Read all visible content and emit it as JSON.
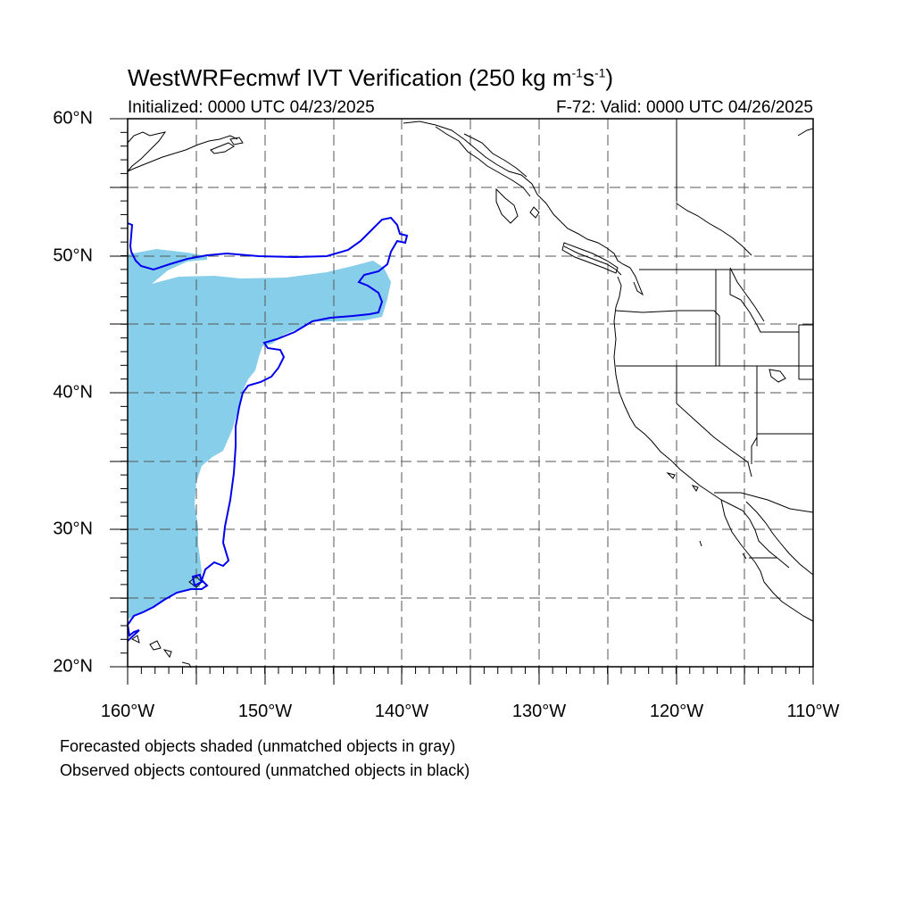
{
  "title": {
    "main": "WestWRFecmwf IVT Verification (250 kg m",
    "exp1": "-1",
    "mid": "s",
    "exp2": "-1",
    "end": ")"
  },
  "subtitle_left": "Initialized: 0000 UTC 04/23/2025",
  "subtitle_right": "F-72: Valid: 0000 UTC 04/26/2025",
  "lat_labels": [
    "60°N",
    "50°N",
    "40°N",
    "30°N",
    "20°N"
  ],
  "lon_labels": [
    "160°W",
    "150°W",
    "140°W",
    "130°W",
    "120°W",
    "110°W"
  ],
  "caption_1": "Forecasted objects shaded (unmatched objects in gray)",
  "caption_2": "Observed objects contoured (unmatched objects in black)",
  "colors": {
    "forecast_fill": "#87ceeb",
    "observed_contour": "#0000ee",
    "coast": "#000000",
    "grid": "#555555"
  },
  "map_extent": {
    "lon": [
      -160,
      -110
    ],
    "lat": [
      20,
      60
    ]
  }
}
